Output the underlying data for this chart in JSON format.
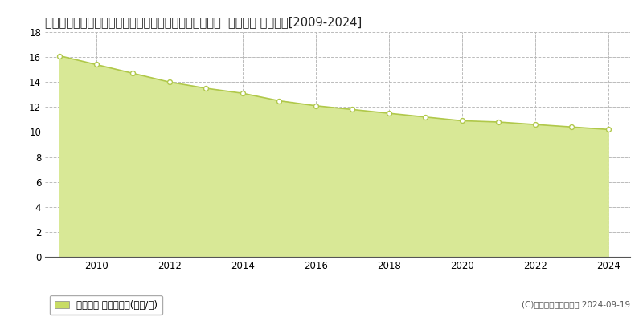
{
  "title": "和歌山県伊都郡かつらぎ町大字笠田東字男子１０５番３  公示地価 地価推移[2009-2024]",
  "years": [
    2009,
    2010,
    2011,
    2012,
    2013,
    2014,
    2015,
    2016,
    2017,
    2018,
    2019,
    2020,
    2021,
    2022,
    2023,
    2024
  ],
  "values": [
    16.1,
    15.4,
    14.7,
    14.0,
    13.5,
    13.1,
    12.5,
    12.1,
    11.8,
    11.5,
    11.2,
    10.9,
    10.8,
    10.6,
    10.4,
    10.2
  ],
  "line_color": "#b0c84a",
  "fill_color": "#d8e896",
  "marker_facecolor": "#ffffff",
  "marker_edgecolor": "#b0c84a",
  "background_color": "#ffffff",
  "grid_color": "#bbbbbb",
  "ylim": [
    0,
    18
  ],
  "yticks": [
    0,
    2,
    4,
    6,
    8,
    10,
    12,
    14,
    16,
    18
  ],
  "xlim_min": 2008.6,
  "xlim_max": 2024.6,
  "xticks": [
    2010,
    2012,
    2014,
    2016,
    2018,
    2020,
    2022,
    2024
  ],
  "legend_label": "公示地価 平均坪単価(万円/坪)",
  "legend_color": "#c8dc64",
  "copyright_text": "(C)土地価格ドットコム 2024-09-19",
  "title_fontsize": 10.5,
  "tick_fontsize": 8.5,
  "legend_fontsize": 8.5,
  "copyright_fontsize": 7.5
}
